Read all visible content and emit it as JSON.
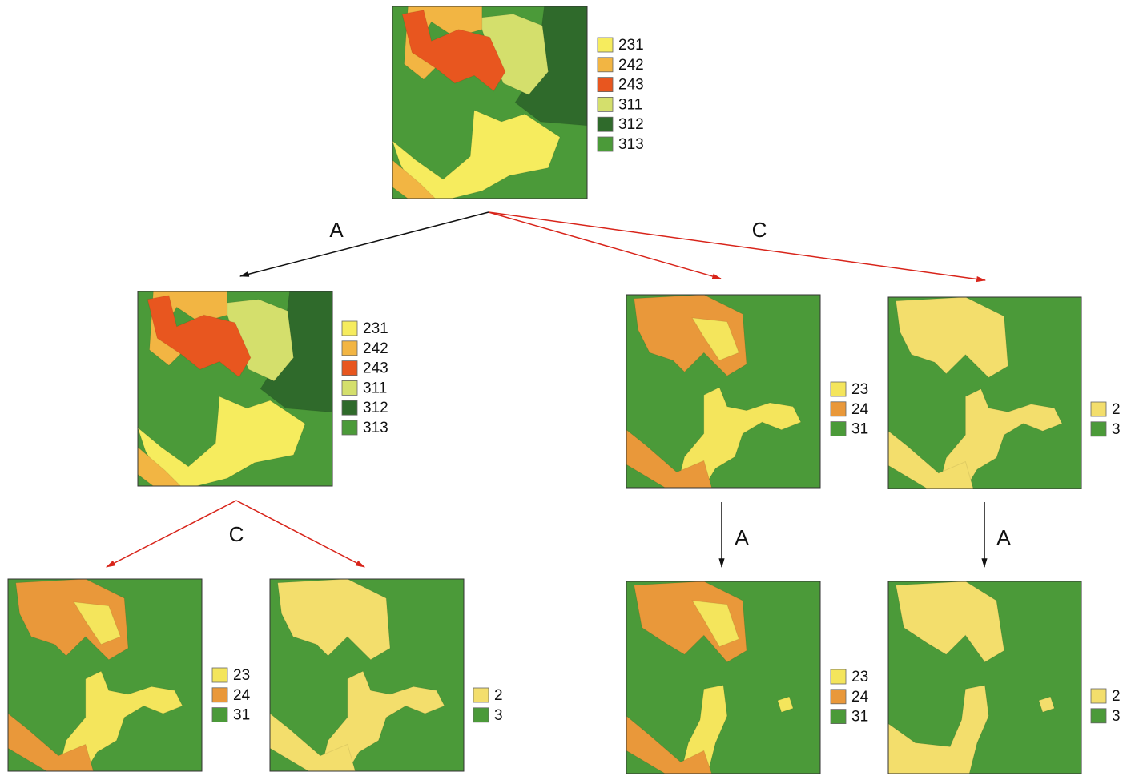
{
  "nodes": [
    {
      "legend": [
        {
          "label": "231",
          "color": "#f6ec5e"
        },
        {
          "label": "242",
          "color": "#f2b543"
        },
        {
          "label": "243",
          "color": "#e8561f"
        },
        {
          "label": "311",
          "color": "#d4df6c"
        },
        {
          "label": "312",
          "color": "#2f6a2b"
        },
        {
          "label": "313",
          "color": "#4b9a39"
        }
      ]
    },
    {
      "legend": [
        {
          "label": "231",
          "color": "#f6ec5e"
        },
        {
          "label": "242",
          "color": "#f2b543"
        },
        {
          "label": "243",
          "color": "#e8561f"
        },
        {
          "label": "311",
          "color": "#d4df6c"
        },
        {
          "label": "312",
          "color": "#2f6a2b"
        },
        {
          "label": "313",
          "color": "#4b9a39"
        }
      ]
    },
    {
      "legend": [
        {
          "label": "23",
          "color": "#f4e55c"
        },
        {
          "label": "24",
          "color": "#e9983a"
        },
        {
          "label": "31",
          "color": "#4b9a39"
        }
      ]
    },
    {
      "legend": [
        {
          "label": "2",
          "color": "#f3de6c"
        },
        {
          "label": "3",
          "color": "#4b9a39"
        }
      ]
    },
    {
      "legend": [
        {
          "label": "23",
          "color": "#f4e55c"
        },
        {
          "label": "24",
          "color": "#e9983a"
        },
        {
          "label": "31",
          "color": "#4b9a39"
        }
      ]
    },
    {
      "legend": [
        {
          "label": "2",
          "color": "#f3de6c"
        },
        {
          "label": "3",
          "color": "#4b9a39"
        }
      ]
    },
    {
      "legend": [
        {
          "label": "23",
          "color": "#f4e55c"
        },
        {
          "label": "24",
          "color": "#e9983a"
        },
        {
          "label": "31",
          "color": "#4b9a39"
        }
      ]
    },
    {
      "legend": [
        {
          "label": "2",
          "color": "#f3de6c"
        },
        {
          "label": "3",
          "color": "#4b9a39"
        }
      ]
    }
  ],
  "edges": [
    {
      "label": "A"
    },
    {
      "label": "C"
    },
    {
      "label": "C"
    },
    {
      "label": "A"
    },
    {
      "label": "A"
    }
  ]
}
